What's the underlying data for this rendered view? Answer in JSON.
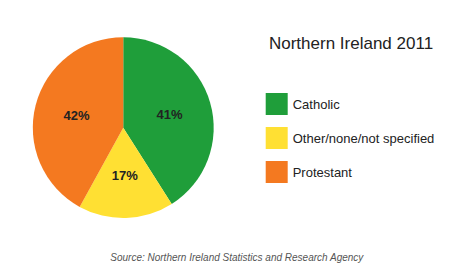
{
  "chart_data": {
    "type": "pie",
    "title": "Northern Ireland 2011",
    "categories": [
      "Catholic",
      "Other/none/not specified",
      "Protestant"
    ],
    "values": [
      41,
      17,
      42
    ],
    "value_labels": [
      "41%",
      "17%",
      "42%"
    ],
    "colors": [
      "#1F9E3A",
      "#FFE033",
      "#F47920"
    ],
    "data_labels": true,
    "legend": "right",
    "annotations": [
      "Source: Northern Ireland Statistics and Research Agency"
    ]
  }
}
